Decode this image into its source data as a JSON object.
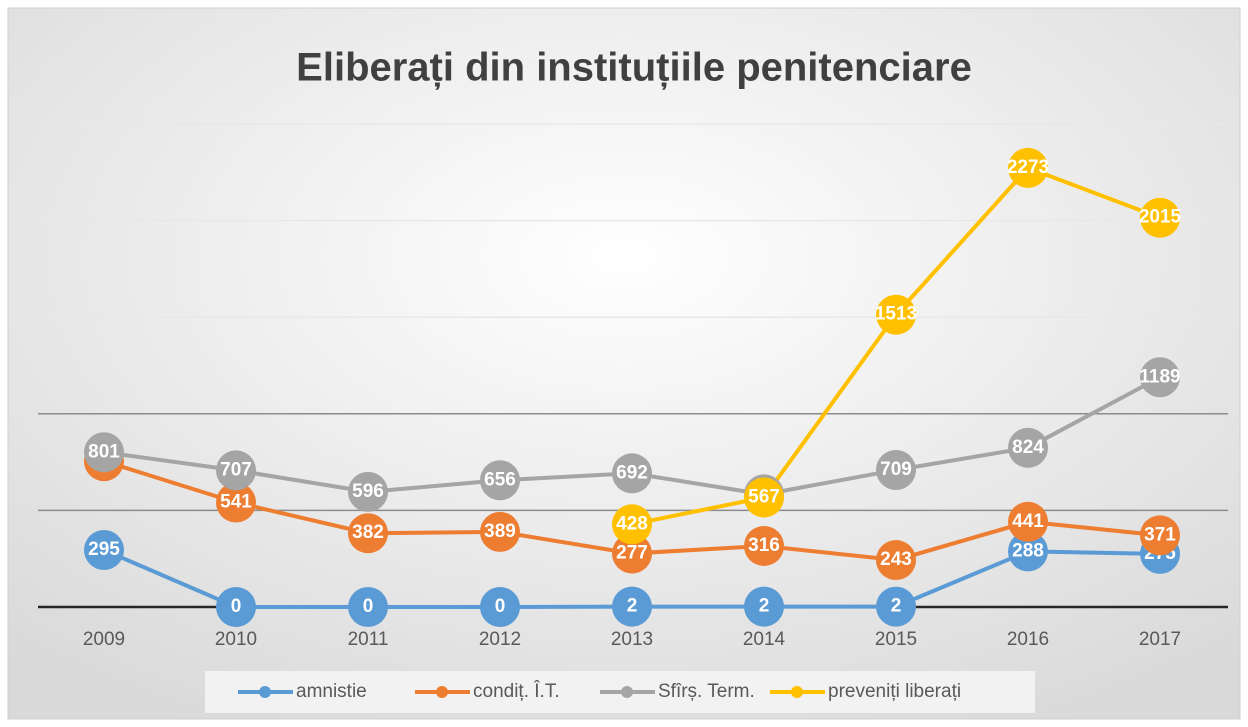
{
  "chart_data": {
    "type": "line",
    "title": "Eliberați din instituțiile penitenciare",
    "categories": [
      "2009",
      "2010",
      "2011",
      "2012",
      "2013",
      "2014",
      "2015",
      "2016",
      "2017"
    ],
    "series": [
      {
        "name": "amnistie",
        "color": "#5b9bd5",
        "values": [
          295,
          0,
          0,
          0,
          2,
          2,
          2,
          288,
          275
        ]
      },
      {
        "name": "condiț. Î.T.",
        "color": "#ed7d31",
        "values": [
          755,
          541,
          382,
          389,
          277,
          316,
          243,
          441,
          371
        ]
      },
      {
        "name": "Sfîrș. Term.",
        "color": "#a5a5a5",
        "values": [
          801,
          707,
          596,
          656,
          692,
          583,
          709,
          824,
          1189
        ]
      },
      {
        "name": "preveniți liberați",
        "color": "#ffc000",
        "values": [
          null,
          null,
          null,
          null,
          428,
          567,
          1513,
          2273,
          2015
        ]
      }
    ],
    "ylim": [
      0,
      2500
    ],
    "yticks": [
      0,
      500,
      1000,
      1500,
      2000,
      2500
    ],
    "grid": true,
    "legend": "bottom"
  }
}
